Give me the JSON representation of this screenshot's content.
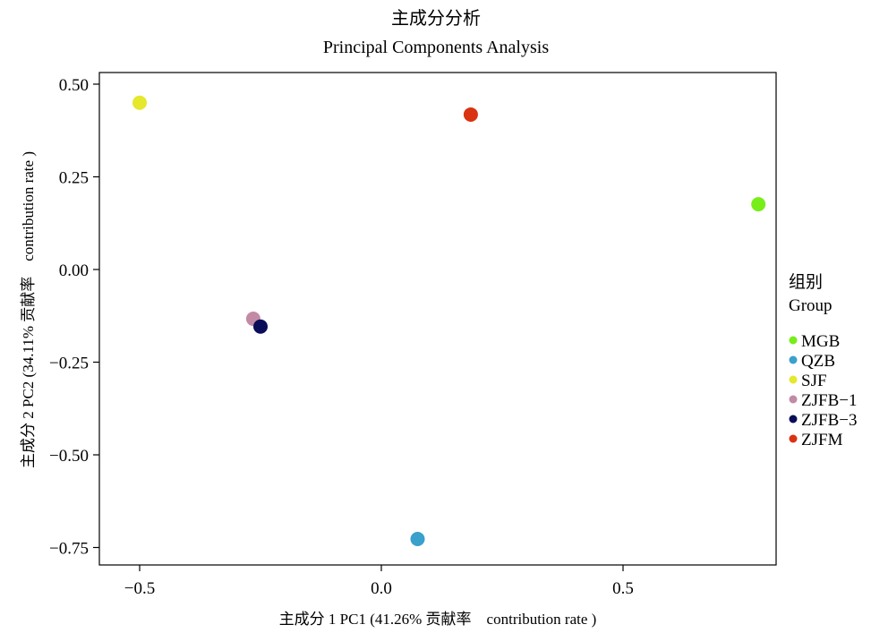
{
  "chart_data": {
    "type": "scatter",
    "title": "主成分分析",
    "subtitle": "Principal Components Analysis",
    "xlabel": "主成分 1 PC1 (41.26% 贡献率　contribution rate )",
    "ylabel": "主成分 2 PC2 (34.11% 贡献率　contribution rate )",
    "xlim": [
      -0.6,
      0.8
    ],
    "ylim": [
      -0.8,
      0.53
    ],
    "x_ticks": [
      -0.5,
      0.0,
      0.5
    ],
    "x_tick_labels": [
      "−0.5",
      "0.0",
      "0.5"
    ],
    "y_ticks": [
      0.5,
      0.25,
      0.0,
      -0.25,
      -0.5,
      -0.75
    ],
    "y_tick_labels": [
      "0.50",
      "0.25",
      "0.00",
      "−0.25",
      "−0.50",
      "−0.75"
    ],
    "grid": false,
    "legend": {
      "title_cn": "组别",
      "title_en": "Group",
      "position": "right"
    },
    "series": [
      {
        "name": "MGB",
        "color": "#77ee1a",
        "x": 0.78,
        "y": 0.176
      },
      {
        "name": "QZB",
        "color": "#3aa0cc",
        "x": 0.075,
        "y": -0.727
      },
      {
        "name": "SJF",
        "color": "#e5e82c",
        "x": -0.5,
        "y": 0.45
      },
      {
        "name": "ZJFB−1",
        "color": "#c38aa5",
        "x": -0.265,
        "y": -0.133
      },
      {
        "name": "ZJFB−3",
        "color": "#0a0d58",
        "x": -0.25,
        "y": -0.154
      },
      {
        "name": "ZJFM",
        "color": "#d93311",
        "x": 0.185,
        "y": 0.418
      }
    ]
  }
}
